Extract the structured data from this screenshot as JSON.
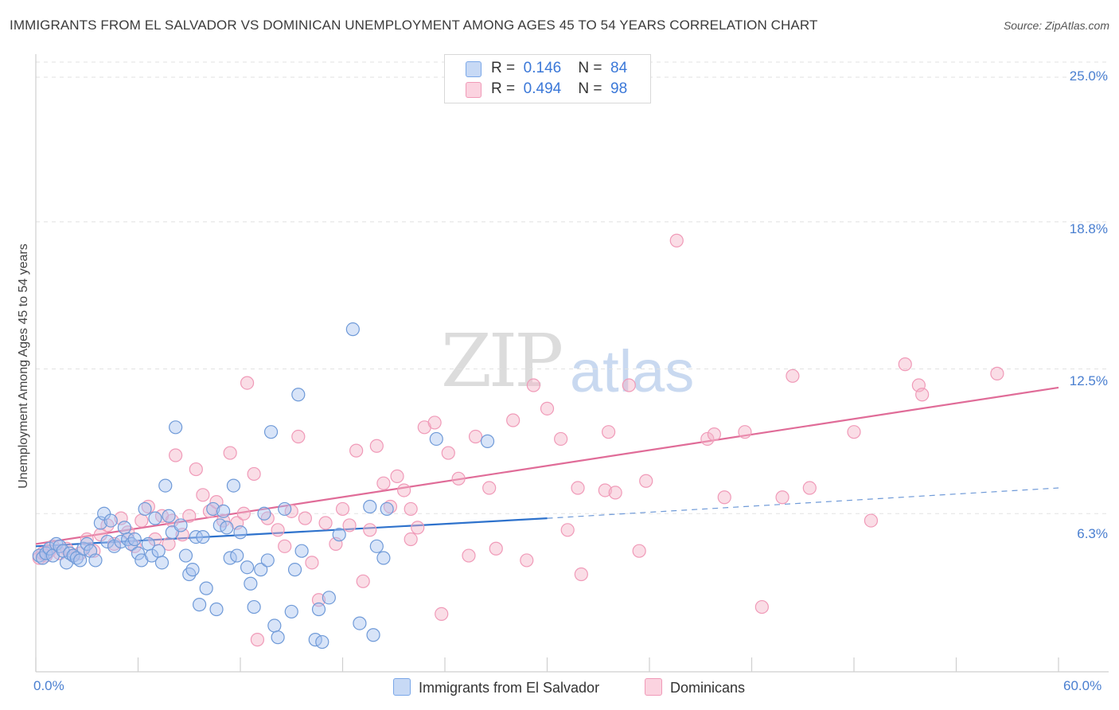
{
  "title": "IMMIGRANTS FROM EL SALVADOR VS DOMINICAN UNEMPLOYMENT AMONG AGES 45 TO 54 YEARS CORRELATION CHART",
  "source": "Source: ZipAtlas.com",
  "watermark": {
    "zip": "ZIP",
    "atlas": "atlas"
  },
  "legend": {
    "rows": [
      {
        "r_label": "R =",
        "r_value": "0.146",
        "n_label": "N =",
        "n_value": "84",
        "color": "#a9c4f0"
      },
      {
        "r_label": "R =",
        "r_value": "0.494",
        "n_label": "N =",
        "n_value": "98",
        "color": "#f5b3c8"
      }
    ]
  },
  "bottom_legend": {
    "series1": "Immigrants from El Salvador",
    "series2": "Dominicans"
  },
  "chart_data": {
    "type": "scatter",
    "title": "IMMIGRANTS FROM EL SALVADOR VS DOMINICAN UNEMPLOYMENT AMONG AGES 45 TO 54 YEARS CORRELATION CHART",
    "xlabel": "",
    "ylabel": "Unemployment Among Ages 45 to 54 years",
    "xlim": [
      0,
      60
    ],
    "ylim": [
      0,
      26
    ],
    "x_tick_labels": [
      "0.0%",
      "60.0%"
    ],
    "y_ticks": [
      6.3,
      12.5,
      18.8,
      25.0
    ],
    "y_tick_labels": [
      "6.3%",
      "12.5%",
      "18.8%",
      "25.0%"
    ],
    "series": [
      {
        "name": "Immigrants from El Salvador",
        "color": "#7aa7e8",
        "trend": {
          "x0": 0,
          "y0": 4.9,
          "x1": 30,
          "y1": 6.1,
          "dash_to_x": 60,
          "dash_to_y": 7.4
        },
        "points": [
          [
            0.2,
            4.5
          ],
          [
            0.4,
            4.4
          ],
          [
            0.6,
            4.6
          ],
          [
            0.8,
            4.8
          ],
          [
            1.0,
            4.5
          ],
          [
            1.2,
            5.0
          ],
          [
            1.4,
            4.9
          ],
          [
            1.6,
            4.7
          ],
          [
            1.8,
            4.2
          ],
          [
            2.0,
            4.6
          ],
          [
            2.2,
            4.5
          ],
          [
            2.4,
            4.4
          ],
          [
            2.6,
            4.3
          ],
          [
            2.8,
            4.8
          ],
          [
            3.0,
            5.0
          ],
          [
            3.2,
            4.7
          ],
          [
            3.5,
            4.3
          ],
          [
            3.8,
            5.9
          ],
          [
            4.0,
            6.3
          ],
          [
            4.2,
            5.1
          ],
          [
            4.4,
            6.0
          ],
          [
            4.6,
            4.9
          ],
          [
            5.0,
            5.1
          ],
          [
            5.2,
            5.7
          ],
          [
            5.4,
            5.2
          ],
          [
            5.6,
            5.0
          ],
          [
            5.8,
            5.2
          ],
          [
            6.0,
            4.6
          ],
          [
            6.2,
            4.3
          ],
          [
            6.4,
            6.5
          ],
          [
            6.6,
            5.0
          ],
          [
            6.8,
            4.5
          ],
          [
            7.0,
            6.1
          ],
          [
            7.2,
            4.7
          ],
          [
            7.4,
            4.2
          ],
          [
            7.6,
            7.5
          ],
          [
            7.8,
            6.2
          ],
          [
            8.0,
            5.5
          ],
          [
            8.2,
            10.0
          ],
          [
            8.5,
            5.8
          ],
          [
            8.8,
            4.5
          ],
          [
            9.0,
            3.7
          ],
          [
            9.2,
            3.9
          ],
          [
            9.4,
            5.3
          ],
          [
            9.6,
            2.4
          ],
          [
            9.8,
            5.3
          ],
          [
            10.0,
            3.1
          ],
          [
            10.4,
            6.5
          ],
          [
            10.6,
            2.2
          ],
          [
            10.8,
            5.8
          ],
          [
            11.0,
            6.4
          ],
          [
            11.2,
            5.7
          ],
          [
            11.4,
            4.4
          ],
          [
            11.6,
            7.5
          ],
          [
            11.8,
            4.5
          ],
          [
            12.0,
            5.5
          ],
          [
            12.4,
            4.0
          ],
          [
            12.6,
            3.3
          ],
          [
            12.8,
            2.3
          ],
          [
            13.2,
            3.9
          ],
          [
            13.4,
            6.3
          ],
          [
            13.6,
            4.3
          ],
          [
            13.8,
            9.8
          ],
          [
            14.0,
            1.5
          ],
          [
            14.2,
            1.0
          ],
          [
            14.6,
            6.5
          ],
          [
            15.0,
            2.1
          ],
          [
            15.2,
            3.9
          ],
          [
            15.4,
            11.4
          ],
          [
            15.6,
            4.7
          ],
          [
            16.4,
            0.9
          ],
          [
            16.6,
            2.2
          ],
          [
            16.8,
            0.8
          ],
          [
            17.2,
            2.7
          ],
          [
            17.8,
            5.4
          ],
          [
            18.6,
            14.2
          ],
          [
            19.0,
            1.6
          ],
          [
            19.6,
            6.6
          ],
          [
            19.8,
            1.1
          ],
          [
            20.0,
            4.9
          ],
          [
            20.4,
            4.4
          ],
          [
            20.6,
            6.5
          ],
          [
            23.5,
            9.5
          ],
          [
            26.5,
            9.4
          ]
        ]
      },
      {
        "name": "Dominicans",
        "color": "#f09ab8",
        "trend": {
          "x0": 0,
          "y0": 5.0,
          "x1": 60,
          "y1": 11.7
        },
        "points": [
          [
            0.2,
            4.4
          ],
          [
            0.4,
            4.6
          ],
          [
            0.6,
            4.5
          ],
          [
            0.8,
            4.7
          ],
          [
            1.0,
            4.9
          ],
          [
            1.4,
            4.6
          ],
          [
            1.8,
            4.8
          ],
          [
            2.2,
            4.5
          ],
          [
            2.6,
            4.6
          ],
          [
            3.0,
            5.2
          ],
          [
            3.4,
            4.7
          ],
          [
            3.8,
            5.4
          ],
          [
            4.2,
            5.8
          ],
          [
            4.6,
            5.0
          ],
          [
            5.0,
            6.1
          ],
          [
            5.4,
            5.5
          ],
          [
            5.8,
            4.9
          ],
          [
            6.2,
            6.0
          ],
          [
            6.6,
            6.6
          ],
          [
            7.0,
            5.2
          ],
          [
            7.4,
            6.2
          ],
          [
            7.8,
            5.0
          ],
          [
            8.0,
            6.0
          ],
          [
            8.2,
            8.8
          ],
          [
            8.6,
            5.4
          ],
          [
            9.0,
            6.2
          ],
          [
            9.4,
            8.2
          ],
          [
            9.8,
            7.1
          ],
          [
            10.2,
            6.4
          ],
          [
            10.6,
            6.8
          ],
          [
            11.0,
            6.0
          ],
          [
            11.4,
            8.9
          ],
          [
            11.8,
            5.9
          ],
          [
            12.2,
            6.3
          ],
          [
            12.4,
            11.9
          ],
          [
            12.8,
            8.0
          ],
          [
            13.0,
            0.9
          ],
          [
            13.6,
            6.1
          ],
          [
            14.2,
            5.6
          ],
          [
            14.6,
            4.9
          ],
          [
            15.0,
            6.4
          ],
          [
            15.4,
            9.6
          ],
          [
            15.8,
            6.1
          ],
          [
            16.2,
            4.2
          ],
          [
            16.6,
            2.6
          ],
          [
            17.0,
            5.9
          ],
          [
            17.6,
            5.0
          ],
          [
            18.0,
            6.5
          ],
          [
            18.4,
            5.8
          ],
          [
            18.8,
            9.0
          ],
          [
            19.2,
            3.4
          ],
          [
            19.6,
            5.6
          ],
          [
            20.0,
            9.2
          ],
          [
            20.4,
            7.6
          ],
          [
            20.8,
            6.6
          ],
          [
            21.2,
            7.9
          ],
          [
            21.6,
            7.3
          ],
          [
            22.0,
            6.5
          ],
          [
            22.4,
            5.7
          ],
          [
            22.8,
            10.0
          ],
          [
            23.4,
            10.2
          ],
          [
            23.8,
            2.0
          ],
          [
            24.2,
            8.9
          ],
          [
            24.8,
            7.8
          ],
          [
            25.4,
            4.5
          ],
          [
            25.8,
            9.6
          ],
          [
            26.6,
            7.4
          ],
          [
            28.0,
            10.3
          ],
          [
            28.8,
            4.3
          ],
          [
            29.2,
            11.8
          ],
          [
            30.0,
            10.8
          ],
          [
            30.8,
            9.5
          ],
          [
            31.2,
            5.6
          ],
          [
            31.8,
            7.4
          ],
          [
            32.0,
            3.7
          ],
          [
            33.4,
            7.3
          ],
          [
            33.6,
            9.8
          ],
          [
            34.8,
            11.8
          ],
          [
            35.4,
            4.7
          ],
          [
            35.8,
            7.7
          ],
          [
            37.6,
            18.0
          ],
          [
            39.4,
            9.5
          ],
          [
            39.8,
            9.7
          ],
          [
            40.4,
            7.0
          ],
          [
            41.6,
            9.8
          ],
          [
            42.6,
            2.3
          ],
          [
            43.8,
            7.0
          ],
          [
            44.4,
            12.2
          ],
          [
            45.4,
            7.4
          ],
          [
            48.0,
            9.8
          ],
          [
            49.0,
            6.0
          ],
          [
            51.0,
            12.7
          ],
          [
            51.8,
            11.8
          ],
          [
            52.0,
            11.4
          ],
          [
            56.4,
            12.3
          ],
          [
            34.0,
            7.2
          ],
          [
            27.0,
            4.8
          ],
          [
            22.0,
            5.2
          ]
        ]
      }
    ]
  }
}
